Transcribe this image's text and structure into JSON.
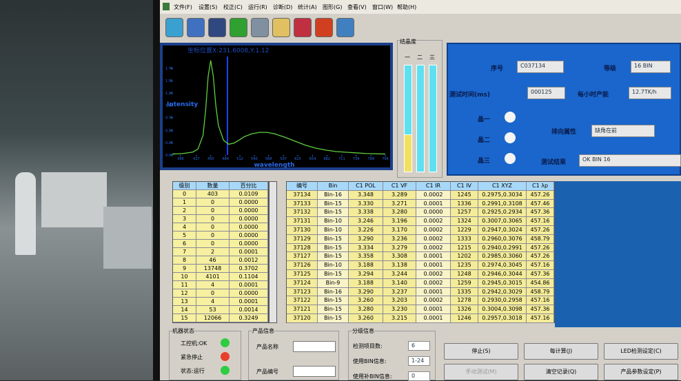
{
  "menu": [
    "文件(F)",
    "设置(S)",
    "校正(C)",
    "运行(R)",
    "诊断(D)",
    "统计(A)",
    "图形(G)",
    "查看(V)",
    "窗口(W)",
    "帮助(H)"
  ],
  "spectrum": {
    "title": "坐标位置X:231.6008,Y:1.12",
    "y_label": "Intensity",
    "x_label": "wavelength",
    "xlim": [
      380,
      800
    ],
    "ylim": [
      0,
      2.0
    ],
    "xticks": [
      396,
      427,
      455,
      484,
      512,
      540,
      568,
      597,
      625,
      654,
      682,
      711,
      739,
      768,
      796
    ],
    "yticks": [
      {
        "value": 0,
        "label": "0.00"
      },
      0.25,
      {
        "value": 0.5,
        "label": "0.50"
      },
      0.76,
      1.01,
      1.26,
      1.51,
      1.76
    ],
    "color": "#5fd040",
    "x": [
      380,
      400,
      420,
      430,
      440,
      445,
      450,
      455,
      460,
      465,
      470,
      480,
      490,
      500,
      510,
      520,
      535,
      550,
      565,
      580,
      600,
      620,
      640,
      660,
      680,
      700,
      730,
      760,
      796
    ],
    "values": [
      0.02,
      0.03,
      0.06,
      0.12,
      0.4,
      0.9,
      1.6,
      1.92,
      1.6,
      1.0,
      0.6,
      0.3,
      0.22,
      0.24,
      0.3,
      0.37,
      0.43,
      0.46,
      0.46,
      0.43,
      0.36,
      0.28,
      0.2,
      0.14,
      0.1,
      0.07,
      0.05,
      0.03,
      0.02
    ]
  },
  "gauge": {
    "title": "结晶度",
    "labels": [
      "一",
      "二",
      "三"
    ]
  },
  "info": {
    "serial_label": "序号",
    "serial": "C037134",
    "grade_label": "等级",
    "grade": "16 BIN",
    "test_time_label": "测试时间(ms)",
    "test_time": "000125",
    "capacity_label": "每小时产能",
    "capacity": "12.7TK/h",
    "crystals": [
      "晶一",
      "晶二",
      "晶三"
    ],
    "orientation_label": "排向属性",
    "orientation": "缺角在前",
    "result_label": "测试结果",
    "result": "OK BIN 16"
  },
  "bin_table": {
    "columns": [
      "级别",
      "数量",
      "百分比"
    ],
    "rows": [
      [
        "0",
        "403",
        "0.0109"
      ],
      [
        "1",
        "0",
        "0.0000"
      ],
      [
        "2",
        "0",
        "0.0000"
      ],
      [
        "3",
        "0",
        "0.0000"
      ],
      [
        "4",
        "0",
        "0.0000"
      ],
      [
        "5",
        "0",
        "0.0000"
      ],
      [
        "6",
        "0",
        "0.0000"
      ],
      [
        "7",
        "2",
        "0.0001"
      ],
      [
        "8",
        "46",
        "0.0012"
      ],
      [
        "9",
        "13748",
        "0.3702"
      ],
      [
        "10",
        "4101",
        "0.1104"
      ],
      [
        "11",
        "4",
        "0.0001"
      ],
      [
        "12",
        "0",
        "0.0000"
      ],
      [
        "13",
        "4",
        "0.0001"
      ],
      [
        "14",
        "53",
        "0.0014"
      ],
      [
        "15",
        "12066",
        "0.3249"
      ]
    ]
  },
  "record_table": {
    "columns": [
      "编号",
      "Bin",
      "C1 POL",
      "C1 VF",
      "C1 IR",
      "C1 IV",
      "C1 XYZ",
      "C1 λp"
    ],
    "rows": [
      [
        "37134",
        "Bin-16",
        "3.348",
        "3.289",
        "0.0002",
        "1245",
        "0.2975,0.3034",
        "457.26"
      ],
      [
        "37133",
        "Bin-15",
        "3.330",
        "3.271",
        "0.0001",
        "1336",
        "0.2991,0.3108",
        "457.46"
      ],
      [
        "37132",
        "Bin-15",
        "3.338",
        "3.280",
        "0.0000",
        "1257",
        "0.2925,0.2934",
        "457.36"
      ],
      [
        "37131",
        "Bin-10",
        "3.246",
        "3.196",
        "0.0002",
        "1324",
        "0.3007,0.3065",
        "457.16"
      ],
      [
        "37130",
        "Bin-10",
        "3.226",
        "3.170",
        "0.0002",
        "1229",
        "0.2947,0.3024",
        "457.26"
      ],
      [
        "37129",
        "Bin-15",
        "3.290",
        "3.236",
        "0.0002",
        "1333",
        "0.2960,0.3076",
        "458.79"
      ],
      [
        "37128",
        "Bin-15",
        "3.334",
        "3.279",
        "0.0002",
        "1215",
        "0.2940,0.2991",
        "457.26"
      ],
      [
        "37127",
        "Bin-15",
        "3.358",
        "3.308",
        "0.0001",
        "1202",
        "0.2985,0.3060",
        "457.26"
      ],
      [
        "37126",
        "Bin-10",
        "3.188",
        "3.138",
        "0.0001",
        "1235",
        "0.2974,0.3045",
        "457.16"
      ],
      [
        "37125",
        "Bin-15",
        "3.294",
        "3.244",
        "0.0002",
        "1248",
        "0.2946,0.3044",
        "457.36"
      ],
      [
        "37124",
        "Bin-9",
        "3.188",
        "3.140",
        "0.0002",
        "1259",
        "0.2945,0.3015",
        "454.86"
      ],
      [
        "37123",
        "Bin-16",
        "3.290",
        "3.237",
        "0.0001",
        "1335",
        "0.2942,0.3029",
        "458.79"
      ],
      [
        "37122",
        "Bin-15",
        "3.260",
        "3.203",
        "0.0002",
        "1278",
        "0.2930,0.2958",
        "457.16"
      ],
      [
        "37121",
        "Bin-15",
        "3.280",
        "3.230",
        "0.0001",
        "1326",
        "0.3004,0.3098",
        "457.36"
      ],
      [
        "37120",
        "Bin-15",
        "3.260",
        "3.215",
        "0.0001",
        "1246",
        "0.2957,0.3018",
        "457.16"
      ]
    ]
  },
  "machine_status": {
    "title": "机器状态",
    "items": [
      {
        "label": "工控机:OK",
        "color": "#2ecc40"
      },
      {
        "label": "紧急停止",
        "color": "#e8402a"
      },
      {
        "label": "状态:运行",
        "color": "#2ecc40"
      }
    ]
  },
  "product_info": {
    "title": "产品信息",
    "fields": [
      "产品名称",
      "产品编号"
    ]
  },
  "grade_info": {
    "title": "分级信息",
    "fields": [
      {
        "label": "检测项目数:",
        "value": "6"
      },
      {
        "label": "使用BIN信息:",
        "value": "1-24"
      },
      {
        "label": "使用补BIN信息:",
        "value": "0"
      }
    ]
  },
  "buttons": [
    "停止(S)",
    "每计算(J)",
    "LED检测设定(C)",
    "手动测试(M)",
    "清空记录(Q)",
    "产品参数设定(P)"
  ]
}
